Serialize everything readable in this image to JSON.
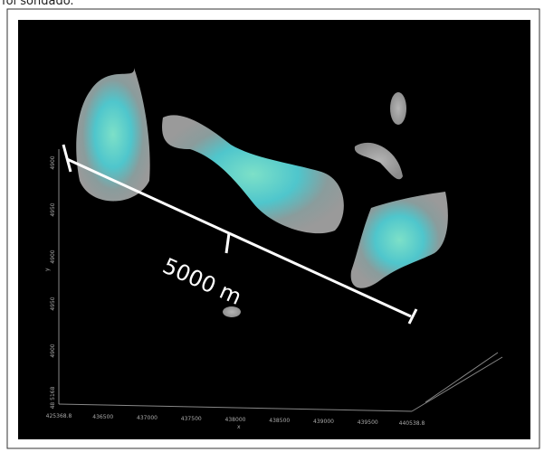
{
  "caption_fragment": "foi sondado.",
  "scale_bar": {
    "label": "5000 m"
  },
  "axes": {
    "x_label": "x",
    "y_label": "y",
    "x_ticks": [
      "425368.8",
      "436500",
      "437000",
      "437500",
      "438000",
      "438500",
      "439000",
      "439500",
      "440538.8"
    ],
    "y_ticks": [
      "48 5168",
      "4900",
      "4950",
      "4900",
      "4950",
      "4900"
    ]
  }
}
